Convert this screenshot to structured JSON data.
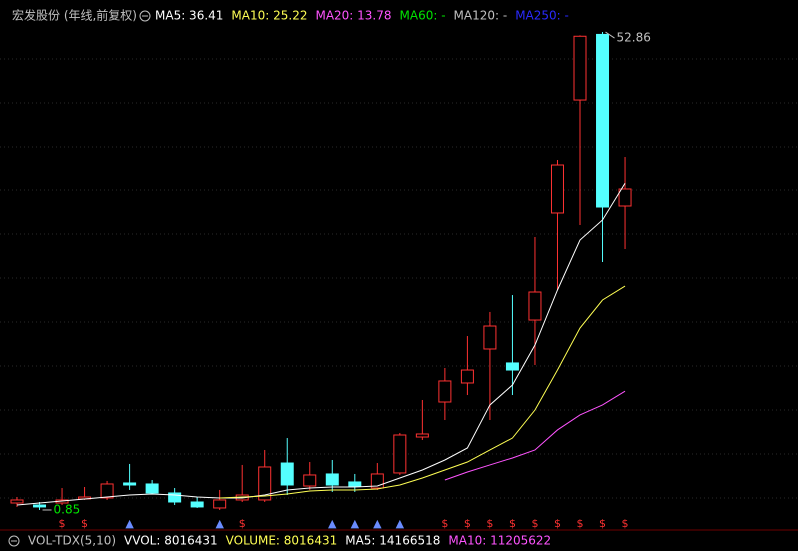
{
  "chart_data": {
    "type": "candlestick",
    "title": "宏发股份 (年线,前复权)",
    "up_color": "#ff3232",
    "down_color": "#54ffff",
    "open": [
      1.61,
      1.39,
      1.61,
      2.05,
      2.16,
      3.79,
      3.68,
      2.7,
      1.72,
      1.07,
      1.94,
      1.94,
      5.96,
      3.46,
      4.77,
      3.9,
      3.24,
      4.88,
      8.79,
      12.6,
      14.67,
      18.37,
      16.85,
      21.52,
      33.17,
      45.46,
      52.6,
      33.93
    ],
    "high": [
      2.26,
      1.72,
      3.24,
      3.35,
      4.01,
      5.86,
      4.11,
      3.24,
      2.26,
      3.03,
      5.75,
      7.38,
      8.68,
      6.07,
      6.29,
      4.77,
      5.96,
      9.23,
      12.82,
      16.3,
      19.78,
      22.4,
      24.24,
      30.56,
      38.93,
      52.5,
      52.86,
      39.26
    ],
    "low": [
      1.18,
      0.85,
      1.39,
      1.94,
      1.94,
      3.03,
      2.59,
      1.39,
      1.07,
      0.85,
      1.72,
      1.72,
      2.48,
      3.03,
      2.81,
      2.81,
      3.03,
      4.66,
      8.47,
      10.64,
      13.36,
      10.64,
      13.36,
      16.63,
      24.79,
      31.86,
      27.84,
      29.25
    ],
    "close": [
      1.94,
      1.18,
      1.94,
      2.26,
      3.68,
      3.57,
      2.7,
      1.72,
      1.18,
      1.94,
      2.48,
      5.53,
      3.57,
      4.66,
      3.57,
      3.46,
      4.77,
      9.01,
      9.12,
      14.89,
      16.08,
      20.87,
      16.08,
      24.57,
      38.39,
      52.4,
      33.82,
      35.78
    ],
    "series": [
      {
        "name": "MA5: 36.41",
        "color": "#ffffff",
        "values": [
          1.39,
          1.61,
          1.83,
          2.05,
          2.26,
          2.48,
          2.59,
          2.48,
          2.26,
          2.16,
          2.16,
          2.48,
          3.03,
          3.24,
          3.35,
          3.35,
          3.46,
          4.33,
          5.2,
          6.29,
          7.6,
          12.28,
          14.45,
          18.8,
          24.79,
          30.23,
          32.41,
          36.41
        ]
      },
      {
        "name": "MA10: 25.22",
        "color": "#ffff54",
        "values": [
          null,
          null,
          null,
          null,
          null,
          null,
          null,
          null,
          null,
          2.16,
          2.26,
          2.37,
          2.59,
          2.92,
          3.03,
          3.03,
          3.14,
          3.57,
          4.33,
          5.2,
          6.07,
          7.38,
          8.68,
          11.73,
          16.08,
          20.65,
          23.7,
          25.22
        ]
      },
      {
        "name": "MA20: 13.78",
        "color": "#ff54ff",
        "values": [
          null,
          null,
          null,
          null,
          null,
          null,
          null,
          null,
          null,
          null,
          null,
          null,
          null,
          null,
          null,
          null,
          null,
          null,
          null,
          4.11,
          4.98,
          5.75,
          6.51,
          7.38,
          9.56,
          11.19,
          12.28,
          13.78
        ]
      }
    ],
    "legend_extra": [
      {
        "text": "MA60: -",
        "color": "#00e600"
      },
      {
        "text": "MA120: -",
        "color": "#c0c0c0"
      },
      {
        "text": "MA250: -",
        "color": "#2a2aff"
      }
    ],
    "signals": [
      null,
      null,
      "$",
      "$",
      null,
      "▲",
      null,
      null,
      null,
      "▲",
      "$",
      null,
      null,
      null,
      "▲",
      "▲",
      "▲",
      "▲",
      null,
      "$",
      "$",
      "$",
      "$",
      "$",
      "$",
      "$",
      "$",
      "$"
    ],
    "high_label": "52.86",
    "low_label": "0.85",
    "ylim": [
      -0.24,
      54.17
    ],
    "volume_header": [
      {
        "text": "VOL-TDX(5,10)",
        "color": "#c0c0c0"
      },
      {
        "text": "VVOL: 8016431",
        "color": "#ffffff"
      },
      {
        "text": "VOLUME: 8016431",
        "color": "#ffff54"
      },
      {
        "text": "MA5: 14166518",
        "color": "#ffffff"
      },
      {
        "text": "MA10: 11205622",
        "color": "#ff54ff"
      }
    ]
  }
}
